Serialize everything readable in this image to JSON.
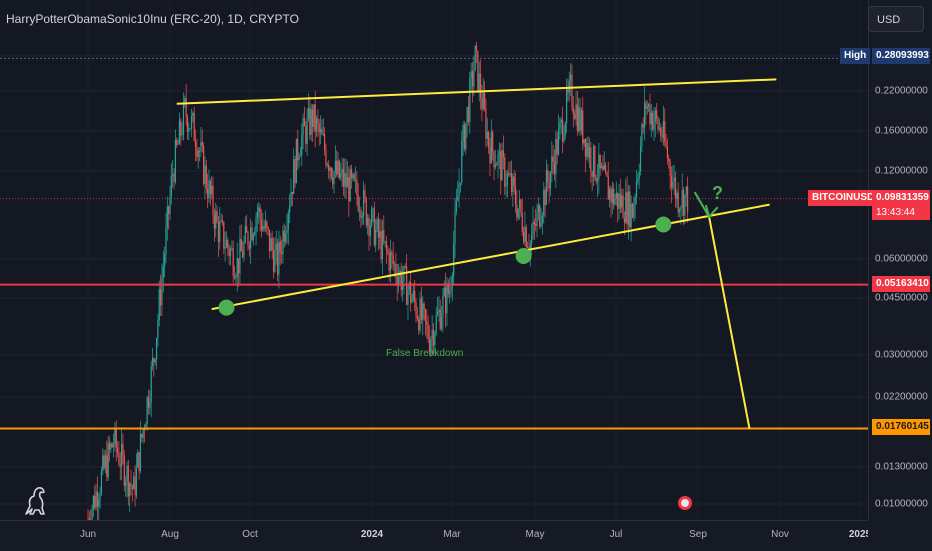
{
  "header": {
    "symbol_title": "HarryPotterObamaSonic10Inu (ERC-20), 1D, CRYPTO",
    "currency_label": "USD"
  },
  "price_scale": {
    "ticks": [
      "0.22000000",
      "0.16000000",
      "0.12000000",
      "0.06000000",
      "0.04500000",
      "0.03000000",
      "0.02200000",
      "0.01300000",
      "0.01000000"
    ],
    "high_label": "High",
    "high_value": "0.28093993",
    "symbol_badge": "BITCOINUSD",
    "current_price": "0.09831359",
    "countdown": "13:43:44",
    "red_level": "0.05163410",
    "orange_level": "0.01760145"
  },
  "time_scale": {
    "labels": [
      "Jun",
      "Aug",
      "Oct",
      "2024",
      "Mar",
      "May",
      "Jul",
      "Sep",
      "Nov",
      "2025"
    ]
  },
  "annotations": {
    "false_breakdown": "False Breakdown",
    "question": "?"
  },
  "colors": {
    "up": "#26a69a",
    "down": "#ef5350",
    "trendline": "#ffeb3b",
    "marker": "#4caf50",
    "red_line": "#f23645",
    "orange_line": "#ff9800",
    "current_price": "#f23645",
    "high_badge": "#1e3a6e"
  },
  "chart_data": {
    "type": "candlestick",
    "scale": "log",
    "ylim": [
      0.0085,
      0.3
    ],
    "x_range": [
      "2023-06",
      "2025-01"
    ],
    "current_price": 0.09831359,
    "high": 0.28093993,
    "horizontal_levels": [
      {
        "value": 0.0516341,
        "color": "#f23645"
      },
      {
        "value": 0.01760145,
        "color": "#ff9800"
      }
    ],
    "price_path": [
      {
        "date": "2023-06-01",
        "price": 0.009
      },
      {
        "date": "2023-06-20",
        "price": 0.016
      },
      {
        "date": "2023-07-05",
        "price": 0.011
      },
      {
        "date": "2023-07-20",
        "price": 0.03
      },
      {
        "date": "2023-07-27",
        "price": 0.06
      },
      {
        "date": "2023-08-03",
        "price": 0.12
      },
      {
        "date": "2023-08-12",
        "price": 0.19
      },
      {
        "date": "2023-08-20",
        "price": 0.16
      },
      {
        "date": "2023-09-05",
        "price": 0.08
      },
      {
        "date": "2023-09-20",
        "price": 0.06
      },
      {
        "date": "2023-10-05",
        "price": 0.09
      },
      {
        "date": "2023-10-20",
        "price": 0.06
      },
      {
        "date": "2023-11-05",
        "price": 0.15
      },
      {
        "date": "2023-11-15",
        "price": 0.18
      },
      {
        "date": "2023-12-01",
        "price": 0.12
      },
      {
        "date": "2023-12-20",
        "price": 0.1
      },
      {
        "date": "2024-01-05",
        "price": 0.07
      },
      {
        "date": "2024-01-25",
        "price": 0.05
      },
      {
        "date": "2024-02-10",
        "price": 0.035
      },
      {
        "date": "2024-02-25",
        "price": 0.05
      },
      {
        "date": "2024-03-05",
        "price": 0.14
      },
      {
        "date": "2024-03-15",
        "price": 0.28
      },
      {
        "date": "2024-03-25",
        "price": 0.15
      },
      {
        "date": "2024-04-10",
        "price": 0.11
      },
      {
        "date": "2024-04-25",
        "price": 0.07
      },
      {
        "date": "2024-05-10",
        "price": 0.12
      },
      {
        "date": "2024-05-25",
        "price": 0.22
      },
      {
        "date": "2024-06-10",
        "price": 0.13
      },
      {
        "date": "2024-06-25",
        "price": 0.1
      },
      {
        "date": "2024-07-10",
        "price": 0.09
      },
      {
        "date": "2024-07-20",
        "price": 0.2
      },
      {
        "date": "2024-08-01",
        "price": 0.16
      },
      {
        "date": "2024-08-12",
        "price": 0.1
      },
      {
        "date": "2024-08-20",
        "price": 0.0983
      }
    ],
    "trendlines": [
      {
        "name": "upper",
        "from": {
          "date": "2023-08-06",
          "price": 0.2
        },
        "to": {
          "date": "2024-10-25",
          "price": 0.24
        }
      },
      {
        "name": "lower",
        "from": {
          "date": "2023-09-01",
          "price": 0.043
        },
        "to": {
          "date": "2024-10-20",
          "price": 0.094
        }
      },
      {
        "name": "projection",
        "from": {
          "date": "2024-09-05",
          "price": 0.0858
        },
        "to": {
          "date": "2024-10-05",
          "price": 0.0176
        }
      }
    ],
    "markers": [
      {
        "date": "2023-09-12",
        "price": 0.0435
      },
      {
        "date": "2024-04-20",
        "price": 0.064
      },
      {
        "date": "2024-08-02",
        "price": 0.081
      }
    ]
  }
}
